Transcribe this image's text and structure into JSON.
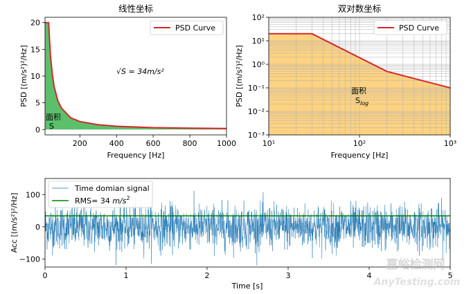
{
  "chart_data": [
    {
      "id": "linear",
      "type": "area",
      "title": "线性坐标",
      "xlabel": "Frequency [Hz]",
      "ylabel": "PSD [(m/s²)²/Hz]",
      "xlim": [
        10,
        1000
      ],
      "ylim": [
        -1,
        21
      ],
      "xticks": [
        200,
        400,
        600,
        800,
        1000
      ],
      "yticks": [
        0,
        5,
        10,
        15,
        20
      ],
      "xtick_labels": [
        "200",
        "400",
        "600",
        "800",
        "1000"
      ],
      "ytick_labels": [
        "0",
        "5",
        "10",
        "15",
        "20"
      ],
      "series": [
        {
          "name": "PSD Curve",
          "color": "#d62728",
          "x": [
            10,
            30,
            35,
            40,
            50,
            60,
            80,
            100,
            150,
            200,
            300,
            400,
            600,
            800,
            1000
          ],
          "y": [
            20,
            20,
            16.6,
            13.8,
            10.3,
            8.0,
            5.4,
            4.0,
            2.2,
            1.5,
            0.9,
            0.62,
            0.36,
            0.25,
            0.2
          ]
        }
      ],
      "fill_color": "#5cbf6a",
      "legend": "PSD Curve",
      "annotation": "√S = 34m/s²",
      "area_label": "面积\nS",
      "area_label_line1": "面积",
      "area_label_line2": "S"
    },
    {
      "id": "loglog",
      "type": "area",
      "title": "双对数坐标",
      "xlabel": "Frequency [Hz]",
      "ylabel": "PSD [(m/s²)²/Hz]",
      "xscale": "log",
      "yscale": "log",
      "xlim": [
        10,
        1000
      ],
      "ylim": [
        0.001,
        100
      ],
      "xtick_labels": [
        "10¹",
        "10²",
        "10³"
      ],
      "ytick_labels": [
        "10⁻³",
        "10⁻²",
        "10⁻¹",
        "10⁰",
        "10¹",
        "10²"
      ],
      "series": [
        {
          "name": "PSD Curve",
          "color": "#d62728",
          "x": [
            10,
            30,
            200,
            1000
          ],
          "y": [
            20,
            20,
            0.5,
            0.1
          ]
        }
      ],
      "fill_color": "#fdd281",
      "legend": "PSD Curve",
      "area_label": "面积\nS_log",
      "area_label_line1": "面积",
      "area_label_line2": "S",
      "area_label_sub": "log",
      "grid": true
    },
    {
      "id": "time",
      "type": "line",
      "xlabel": "Time [s]",
      "ylabel": "Acc [(m/s²)²/Hz]",
      "xlim": [
        0,
        5
      ],
      "ylim": [
        -125,
        150
      ],
      "xticks": [
        0,
        1,
        2,
        3,
        4,
        5
      ],
      "yticks": [
        -100,
        0,
        100
      ],
      "xtick_labels": [
        "0",
        "1",
        "2",
        "3",
        "4",
        "5"
      ],
      "ytick_labels": [
        "−100",
        "0",
        "100"
      ],
      "series": [
        {
          "name": "Time domian signal",
          "color": "#1f77b4",
          "sample_count": 2000,
          "amplitude_std": 34,
          "range_observed": [
            -120,
            135
          ]
        },
        {
          "name": "RMS= 34 m/s²",
          "color": "#008000",
          "y": 34
        }
      ],
      "legend": [
        "Time domian signal",
        "RMS= 34 m/s²"
      ],
      "legend_rms_prefix": "RMS= 34 "
    }
  ],
  "watermark": {
    "line1": "嘉峪检测网",
    "line2": "AnyTesting.com"
  }
}
